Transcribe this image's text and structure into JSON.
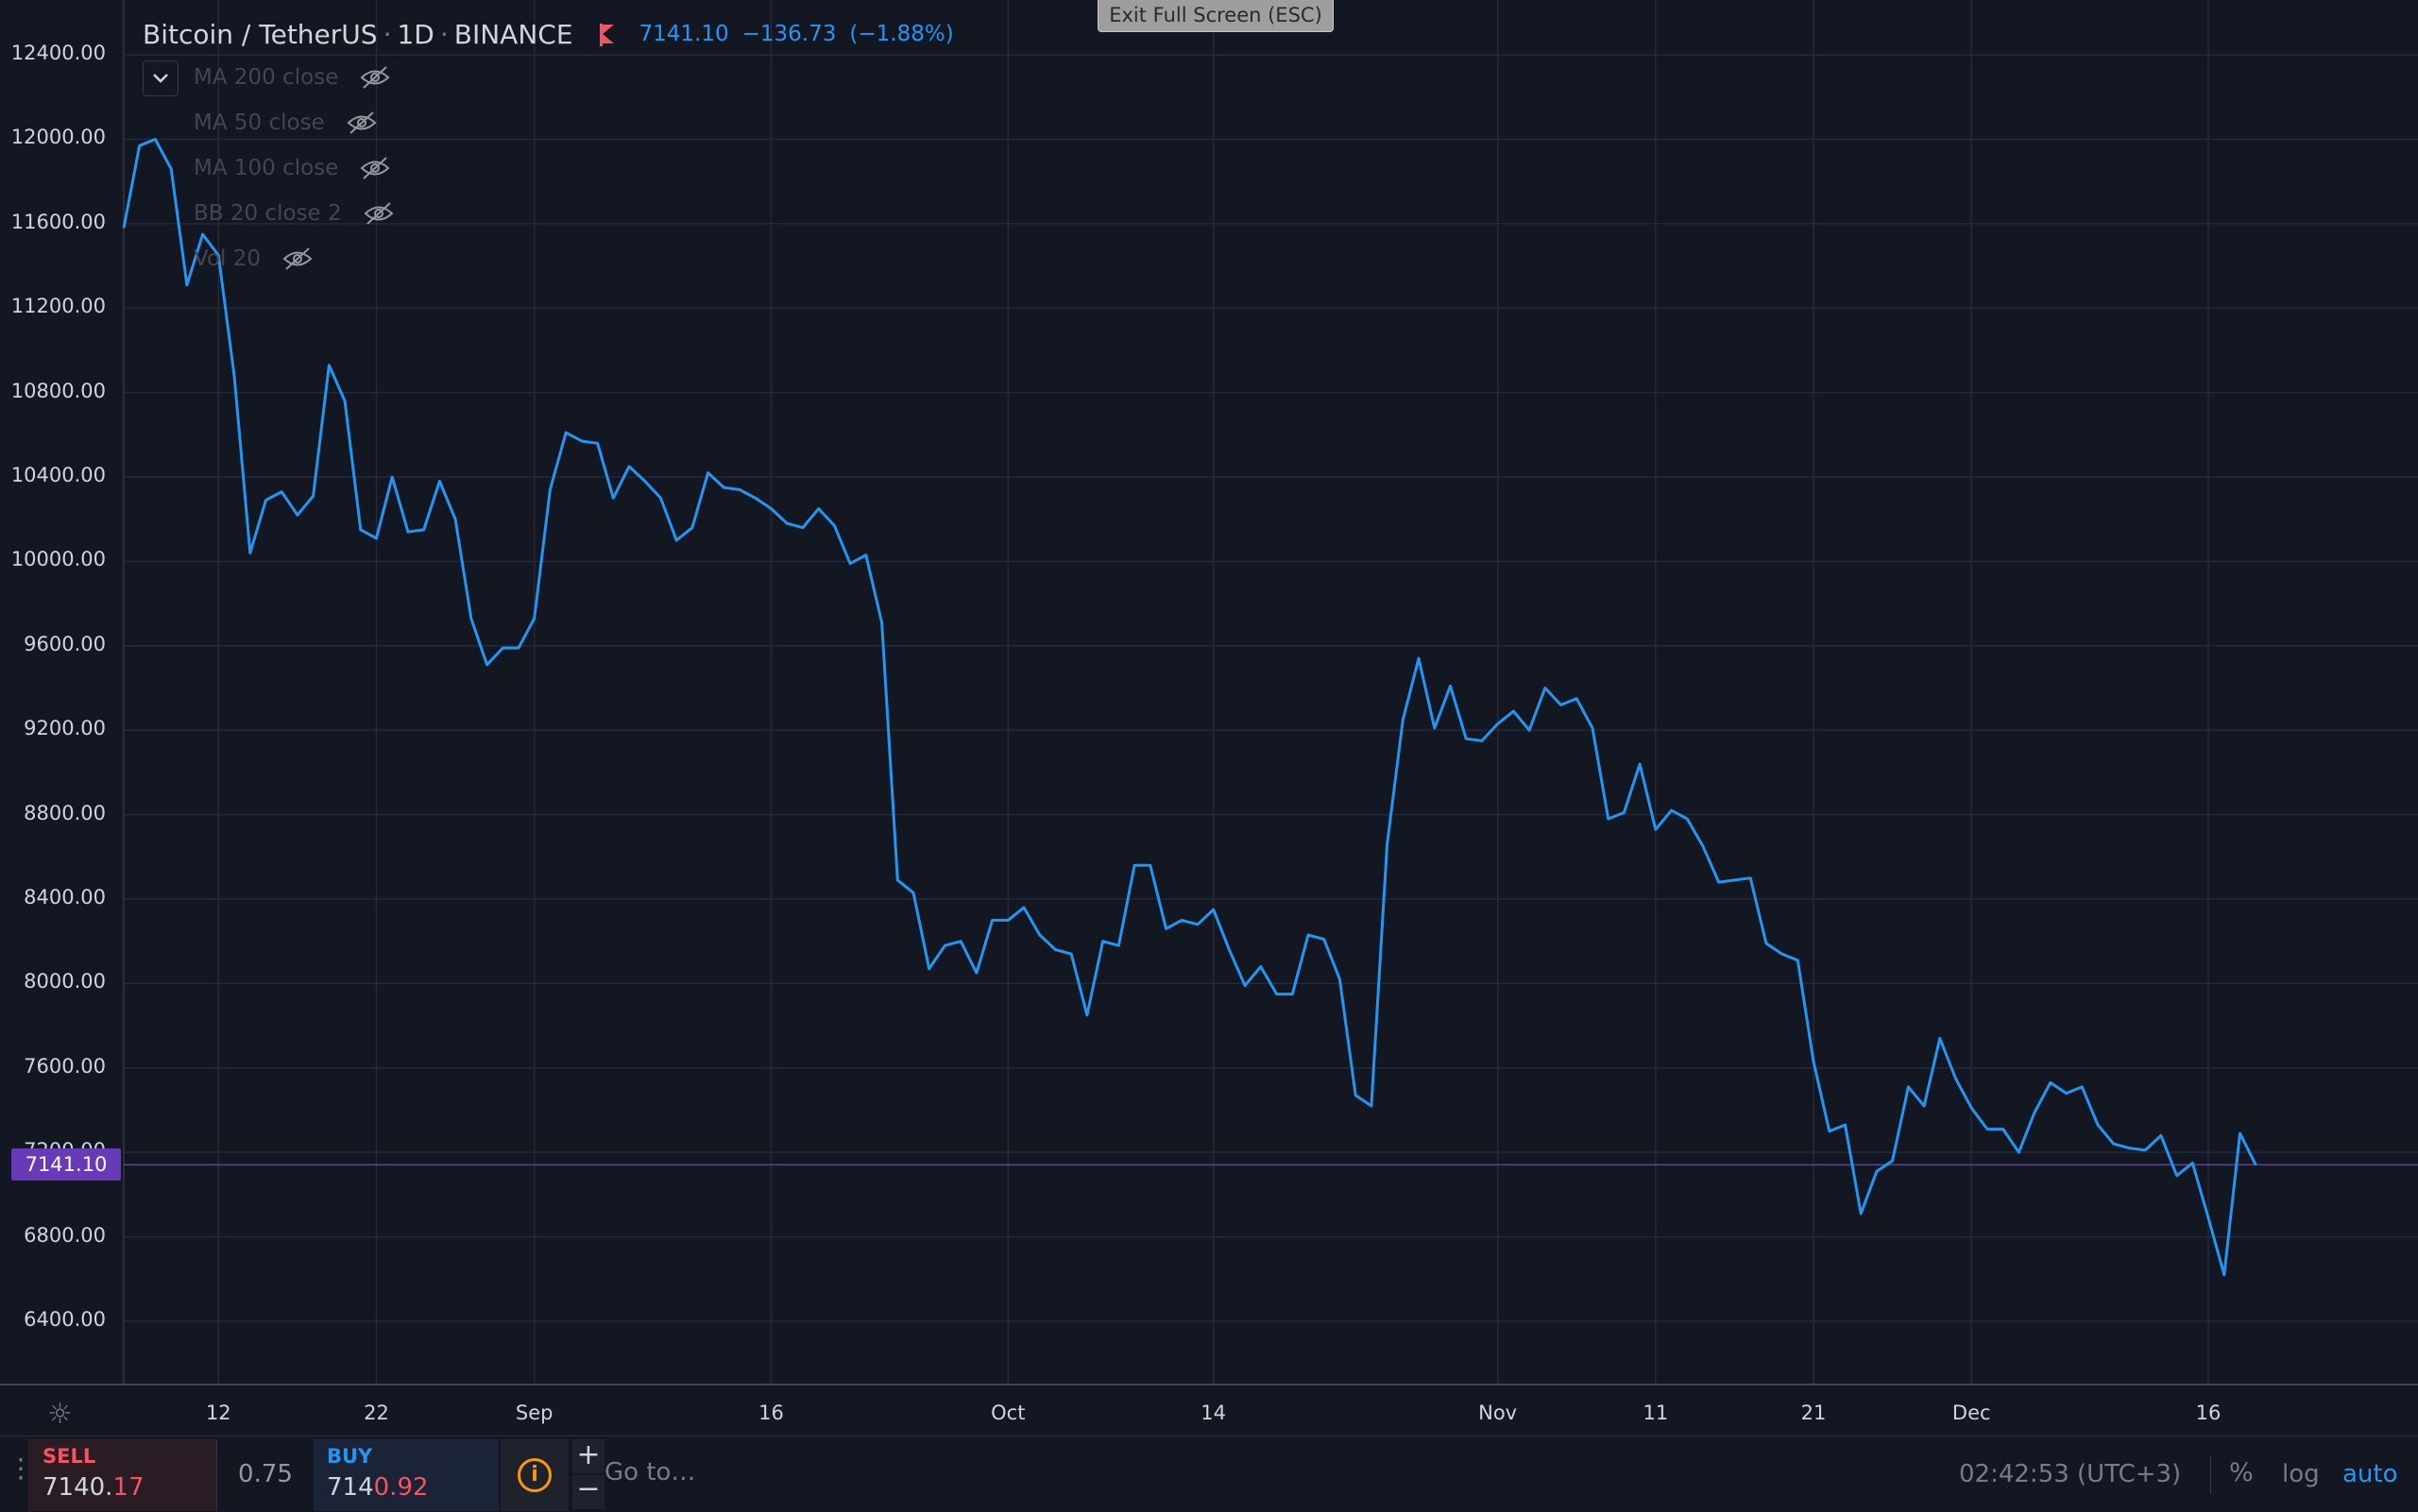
{
  "header": {
    "symbol": "Bitcoin / TetherUS",
    "interval": "1D",
    "exchange": "BINANCE",
    "last": "7141.10",
    "change": "−136.73",
    "change_pct": "(−1.88%)",
    "flag_color": "#f7525f"
  },
  "exit_fullscreen": "Exit Full Screen (ESC)",
  "indicators": [
    {
      "label": "MA 200 close",
      "icon": "eye-hidden-icon"
    },
    {
      "label": "MA 50 close",
      "icon": "eye-hidden-icon"
    },
    {
      "label": "MA 100 close",
      "icon": "eye-hidden-icon"
    },
    {
      "label": "BB 20 close 2",
      "icon": "eye-hidden-icon"
    },
    {
      "label": "Vol 20",
      "icon": "eye-hidden-icon"
    }
  ],
  "price_scale_label": "7141.10",
  "colors": {
    "background": "#131722",
    "line": "#2196f3",
    "grid": "#242938",
    "last_price": "#673ab7",
    "sell": "#f7525f",
    "buy": "#2196f3"
  },
  "chart_data": {
    "type": "line",
    "series": [
      {
        "values": [
          11580,
          11970,
          12000,
          11860,
          11310,
          11550,
          11450,
          10880,
          10040,
          10290,
          10330,
          10220,
          10310,
          10930,
          10760,
          10150,
          10110,
          10400,
          10140,
          10150,
          10380,
          10200,
          9730,
          9510,
          9590,
          9590,
          9730,
          10340,
          10610,
          10570,
          10560,
          10300,
          10450,
          10380,
          10300,
          10100,
          10160,
          10420,
          10350,
          10340,
          10300,
          10250,
          10180,
          10160,
          10250,
          10170,
          9990,
          10030,
          9710,
          8490,
          8430,
          8070,
          8180,
          8200,
          8050,
          8300,
          8300,
          8360,
          8230,
          8160,
          8140,
          7850,
          8200,
          8180,
          8560,
          8560,
          8260,
          8300,
          8280,
          8350,
          8160,
          7990,
          8080,
          7950,
          7950,
          8230,
          8210,
          8020,
          7470,
          7420,
          8660,
          9250,
          9540,
          9210,
          9410,
          9160,
          9150,
          9230,
          9290,
          9200,
          9400,
          9320,
          9350,
          9210,
          8780,
          8810,
          9040,
          8730,
          8820,
          8780,
          8650,
          8480,
          8490,
          8500,
          8190,
          8140,
          8110,
          7630,
          7300,
          7330,
          6910,
          7110,
          7160,
          7510,
          7420,
          7740,
          7550,
          7410,
          7310,
          7310,
          7200,
          7390,
          7530,
          7480,
          7510,
          7330,
          7240,
          7220,
          7210,
          7280,
          7090,
          7150,
          6890,
          6620,
          7290,
          7141
        ]
      }
    ],
    "ylim": [
      6100,
      12660
    ],
    "yticks": [
      "12400.00",
      "12000.00",
      "11600.00",
      "11200.00",
      "10800.00",
      "10400.00",
      "10000.00",
      "9600.00",
      "9200.00",
      "8800.00",
      "8400.00",
      "8000.00",
      "7600.00",
      "7200.00",
      "6800.00",
      "6400.00"
    ],
    "xticks": [
      {
        "label": "12",
        "index": 6
      },
      {
        "label": "22",
        "index": 16
      },
      {
        "label": "Sep",
        "index": 26
      },
      {
        "label": "16",
        "index": 41
      },
      {
        "label": "Oct",
        "index": 56
      },
      {
        "label": "14",
        "index": 69
      },
      {
        "label": "Nov",
        "index": 87
      },
      {
        "label": "11",
        "index": 97
      },
      {
        "label": "21",
        "index": 107
      },
      {
        "label": "Dec",
        "index": 117
      },
      {
        "label": "16",
        "index": 132
      }
    ],
    "grid": true,
    "last_value": 7141.1
  },
  "trade": {
    "sell_label": "SELL",
    "sell_price_main": "7140.",
    "sell_price_hi": "17",
    "spread": "0.75",
    "buy_label": "BUY",
    "buy_price_main": "714",
    "buy_price_hi": "0.92"
  },
  "bottom": {
    "goto": "Go to…",
    "time": "02:42:53 (UTC+3)",
    "percent": "%",
    "log": "log",
    "auto": "auto"
  }
}
